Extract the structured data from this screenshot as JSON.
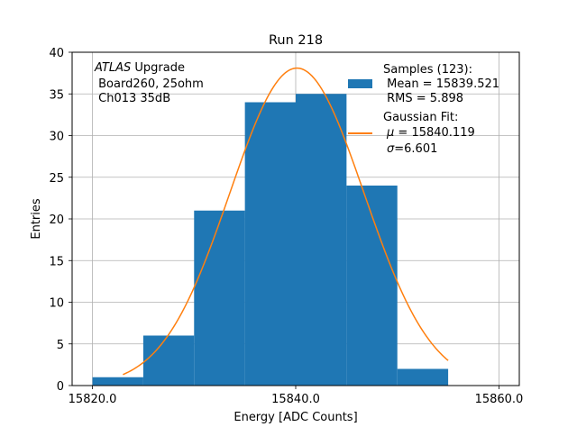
{
  "chart_data": {
    "type": "bar",
    "title": "Run 218",
    "xlabel": "Energy [ADC Counts]",
    "ylabel": "Entries",
    "xlim": [
      15818,
      15862
    ],
    "ylim": [
      0,
      40
    ],
    "grid": true,
    "x_ticks": [
      15820.0,
      15840.0,
      15860.0
    ],
    "x_tick_labels": [
      "15820.0",
      "15840.0",
      "15860.0"
    ],
    "y_ticks": [
      0,
      5,
      10,
      15,
      20,
      25,
      30,
      35,
      40
    ],
    "y_tick_labels": [
      "0",
      "5",
      "10",
      "15",
      "20",
      "25",
      "30",
      "35",
      "40"
    ],
    "histogram": {
      "bin_edges": [
        15820,
        15825,
        15830,
        15835,
        15840,
        15845,
        15850,
        15855
      ],
      "counts": [
        1,
        6,
        21,
        34,
        35,
        24,
        2
      ],
      "color": "#1f77b4"
    },
    "fit_curve": {
      "mu": 15840.119,
      "sigma": 6.601,
      "amplitude": 38.1,
      "x_range": [
        15823,
        15855
      ],
      "color": "#ff7f0e"
    },
    "annotation": {
      "italic_part": "ATLAS",
      "line1_rest": " Upgrade",
      "line2": " Board260, 25ohm",
      "line3": " Ch013 35dB"
    },
    "legend": {
      "placement": "top-right",
      "samples_label": "Samples (123):",
      "samples_mean": " Mean = 15839.521",
      "samples_rms": " RMS = 5.898",
      "fit_label": "Gaussian Fit:",
      "fit_mu_symbol": "μ",
      "fit_mu_text": " = 15840.119",
      "fit_sigma_symbol": "σ",
      "fit_sigma_text": "=6.601"
    }
  }
}
